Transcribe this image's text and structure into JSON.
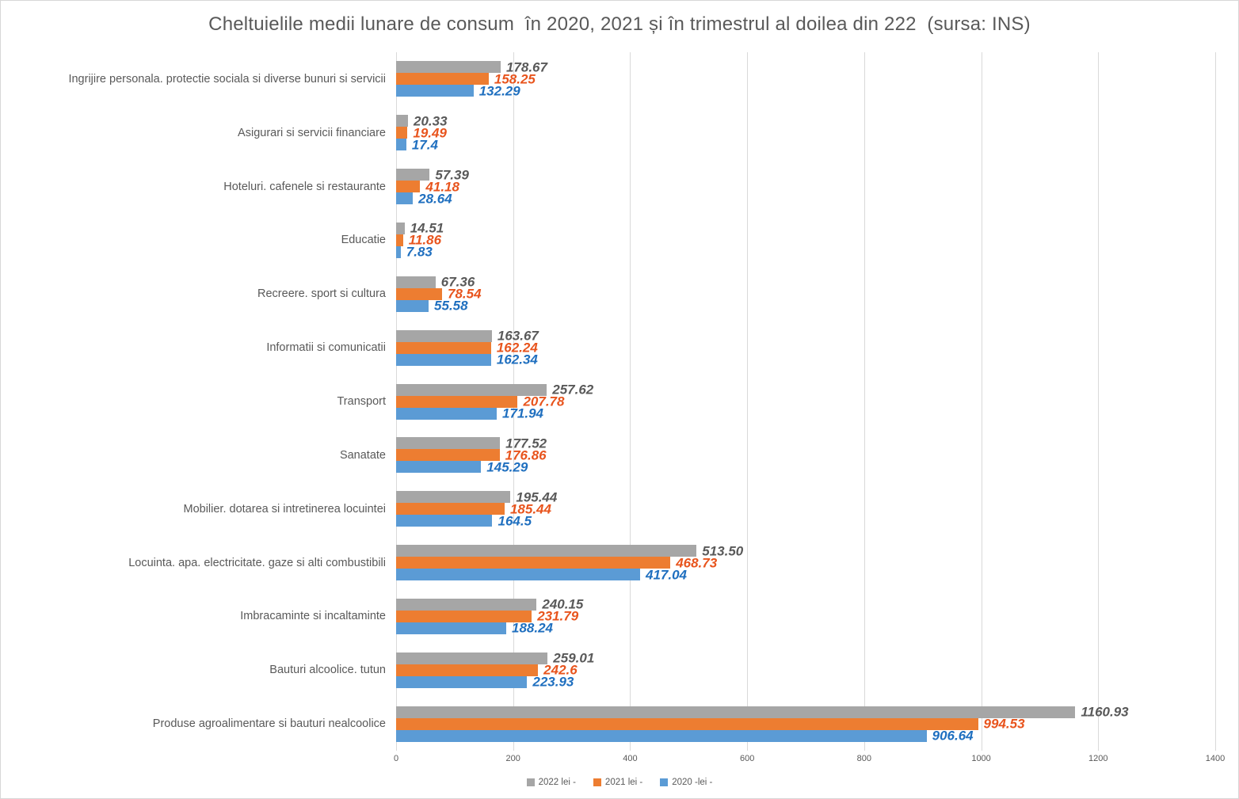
{
  "title": "Cheltuielile medii lunare de consum  în 2020, 2021 și în trimestrul al doilea din 222  (sursa: INS)",
  "chart_data": {
    "type": "bar",
    "orientation": "horizontal",
    "title": "Cheltuielile medii lunare de consum  în 2020, 2021 și în trimestrul al doilea din 222  (sursa: INS)",
    "categories": [
      "Ingrijire personala. protectie sociala si diverse bunuri si servicii",
      "Asigurari si servicii financiare",
      "Hoteluri. cafenele si restaurante",
      "Educatie",
      "Recreere. sport si cultura",
      "Informatii si comunicatii",
      "Transport",
      "Sanatate",
      "Mobilier. dotarea si intretinerea locuintei",
      "Locuinta. apa. electricitate. gaze si alti combustibili",
      "Imbracaminte si incaltaminte",
      "Bauturi alcoolice. tutun",
      "Produse agroalimentare si bauturi nealcoolice"
    ],
    "series": [
      {
        "name": "2022 lei -",
        "color": "#a6a6a6",
        "label_color": "#595959",
        "values": [
          "178.67",
          "20.33",
          "57.39",
          "14.51",
          "67.36",
          "163.67",
          "257.62",
          "177.52",
          "195.44",
          "513.50",
          "240.15",
          "259.01",
          "1160.93"
        ]
      },
      {
        "name": "2021 lei -",
        "color": "#ed7d31",
        "label_color": "#e8541d",
        "values": [
          "158.25",
          "19.49",
          "41.18",
          "11.86",
          "78.54",
          "162.24",
          "207.78",
          "176.86",
          "185.44",
          "468.73",
          "231.79",
          "242.6",
          "994.53"
        ]
      },
      {
        "name": "2020 -lei -",
        "color": "#5b9bd5",
        "label_color": "#1f6fbf",
        "values": [
          "132.29",
          "17.4",
          "28.64",
          "7.83",
          "55.58",
          "162.34",
          "171.94",
          "145.29",
          "164.5",
          "417.04",
          "188.24",
          "223.93",
          "906.64"
        ]
      }
    ],
    "xlim": [
      0,
      1400
    ],
    "xticks": [
      "0",
      "200",
      "400",
      "600",
      "800",
      "1000",
      "1200",
      "1400"
    ],
    "grid": "vertical",
    "legend_position": "bottom",
    "gridline_color": "#d9d9d9"
  }
}
